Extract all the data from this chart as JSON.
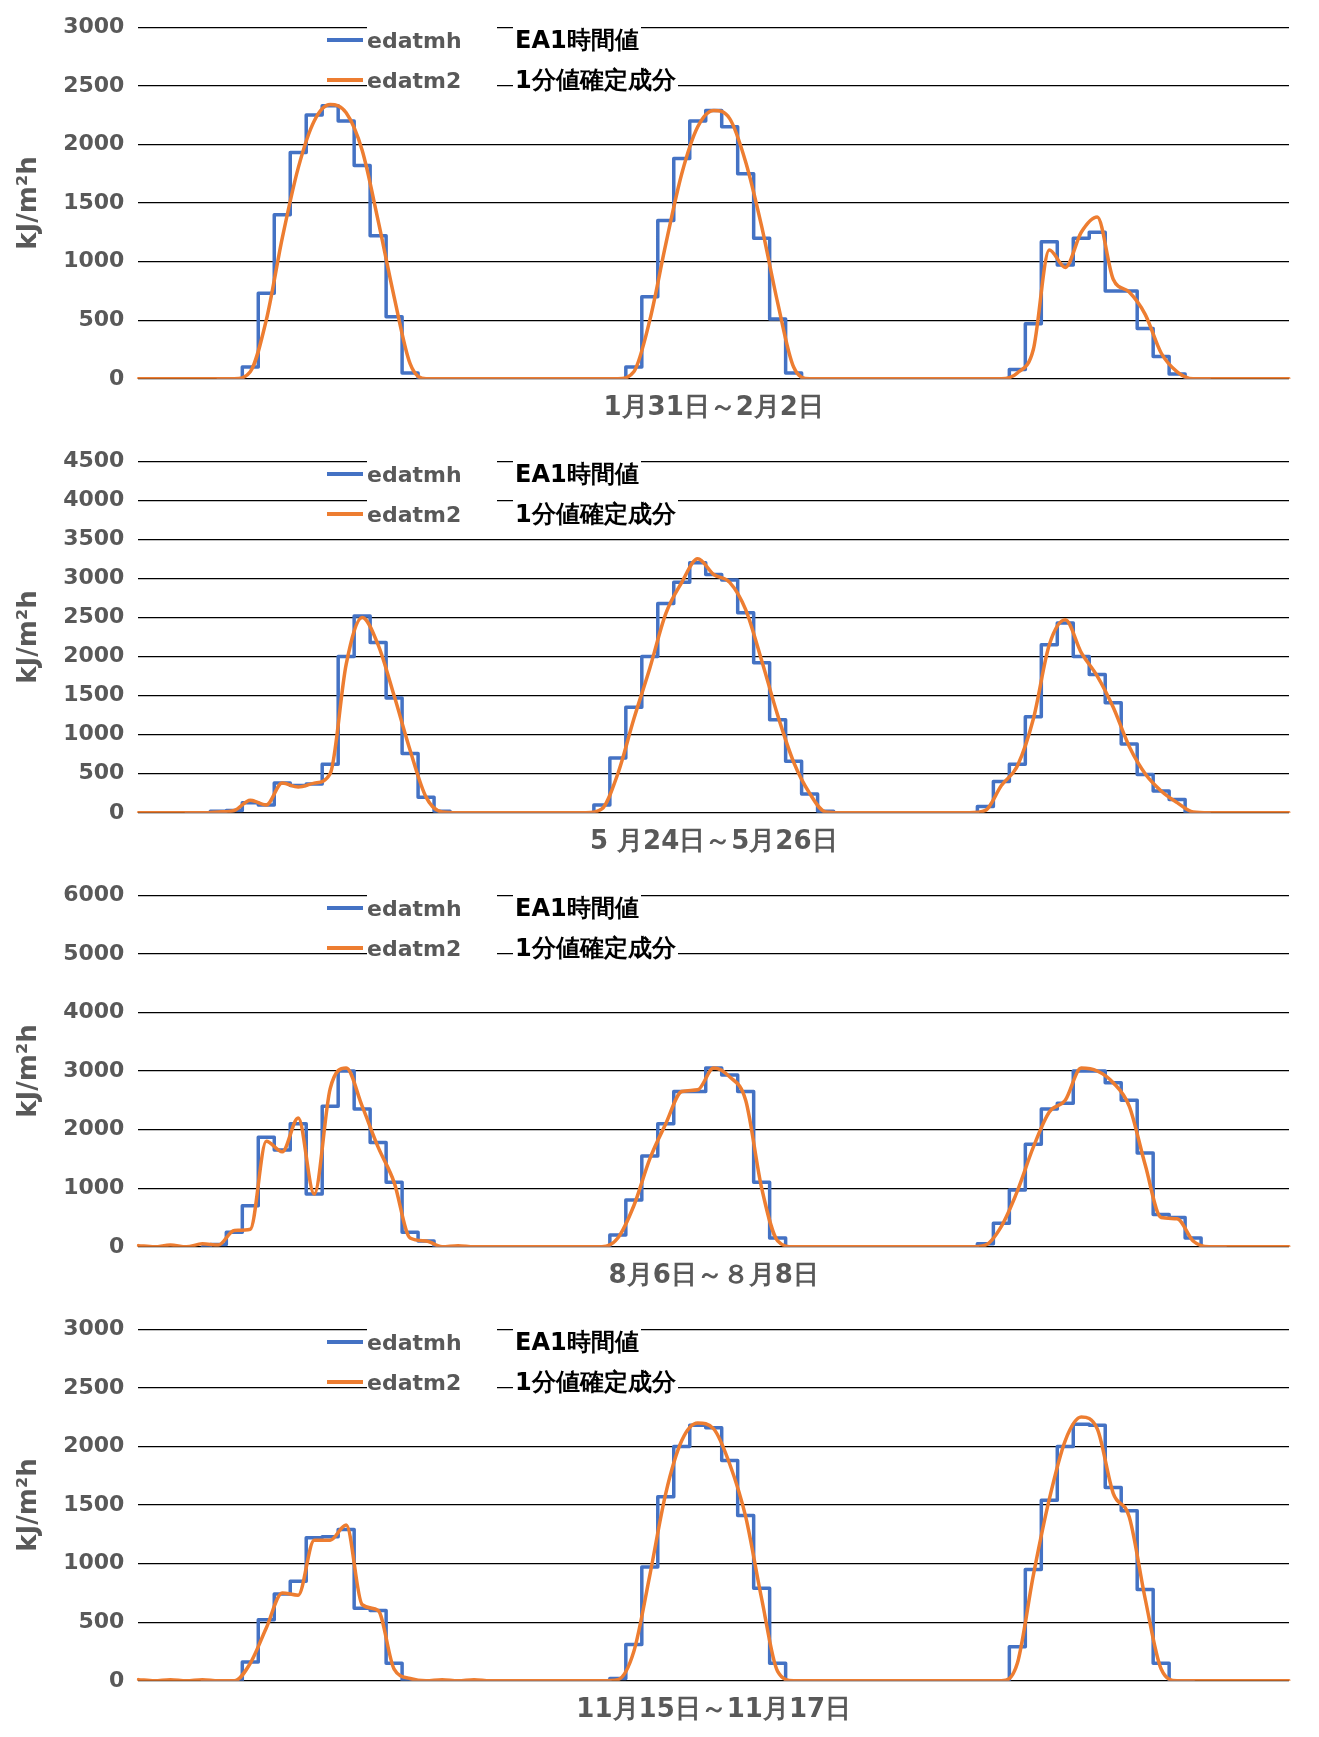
{
  "chart_data": [
    {
      "type": "line",
      "xlabel": "1月31日～2月2日",
      "ylabel": "kJ/m²h",
      "categories": [
        null,
        null,
        null,
        null,
        null,
        null,
        null,
        null,
        null,
        null,
        null,
        null,
        null,
        null,
        null,
        null,
        null,
        null,
        null,
        null,
        null,
        null,
        null,
        null,
        null,
        null,
        null,
        null,
        null,
        null,
        null,
        null,
        null,
        null,
        null,
        null,
        null,
        null,
        null,
        null,
        null,
        null,
        null,
        null,
        null,
        null,
        null,
        null,
        null,
        null,
        null,
        null,
        null,
        null,
        null,
        null,
        null,
        null,
        null,
        null,
        null,
        null,
        null,
        null,
        null,
        null,
        null,
        null,
        null,
        null,
        null,
        null,
        null
      ],
      "ylim": [
        0,
        3000
      ],
      "yticks": [
        0,
        500,
        1000,
        1500,
        2000,
        2500,
        3000
      ],
      "grid": "y",
      "legend": "top left",
      "tick_labels": "y",
      "marker": "none",
      "line_style": "solid",
      "annotations": [
        "EA1時間値",
        "1分値確定成分"
      ],
      "series": [
        {
          "name": "edatmh",
          "type": "step",
          "color": "#4472c4",
          "values": [
            null,
            null,
            null,
            null,
            null,
            0,
            0,
            100,
            730,
            1400,
            1930,
            2250,
            2330,
            2200,
            1820,
            1220,
            530,
            50,
            0,
            0,
            0,
            0,
            0,
            0,
            0,
            0,
            0,
            0,
            0,
            0,
            0,
            100,
            700,
            1350,
            1880,
            2200,
            2290,
            2150,
            1750,
            1200,
            510,
            50,
            0,
            0,
            0,
            0,
            0,
            0,
            0,
            0,
            0,
            0,
            0,
            0,
            0,
            80,
            470,
            1170,
            970,
            1200,
            1250,
            750,
            750,
            430,
            190,
            40,
            0,
            0,
            null,
            null,
            null,
            null,
            null
          ]
        },
        {
          "name": "edatm2",
          "type": "line",
          "color": "#ed7d31",
          "values": [
            0,
            0,
            0,
            0,
            0,
            0,
            0,
            60,
            500,
            1200,
            1800,
            2200,
            2340,
            2270,
            1950,
            1350,
            700,
            130,
            0,
            0,
            0,
            0,
            0,
            0,
            0,
            0,
            0,
            0,
            0,
            0,
            0,
            60,
            500,
            1150,
            1750,
            2150,
            2290,
            2220,
            1850,
            1300,
            650,
            100,
            0,
            0,
            0,
            0,
            0,
            0,
            0,
            0,
            0,
            0,
            0,
            0,
            0,
            50,
            250,
            1100,
            950,
            1250,
            1380,
            850,
            740,
            550,
            220,
            60,
            0,
            0,
            0,
            0,
            0,
            0,
            0
          ]
        }
      ]
    },
    {
      "type": "line",
      "xlabel": "5 月24日～5月26日",
      "ylabel": "kJ/m²h",
      "categories": [
        null,
        null,
        null,
        null,
        null,
        null,
        null,
        null,
        null,
        null,
        null,
        null,
        null,
        null,
        null,
        null,
        null,
        null,
        null,
        null,
        null,
        null,
        null,
        null,
        null,
        null,
        null,
        null,
        null,
        null,
        null,
        null,
        null,
        null,
        null,
        null,
        null,
        null,
        null,
        null,
        null,
        null,
        null,
        null,
        null,
        null,
        null,
        null,
        null,
        null,
        null,
        null,
        null,
        null,
        null,
        null,
        null,
        null,
        null,
        null,
        null,
        null,
        null,
        null,
        null,
        null,
        null,
        null,
        null,
        null,
        null,
        null,
        null
      ],
      "ylim": [
        0,
        4500
      ],
      "yticks": [
        0,
        500,
        1000,
        1500,
        2000,
        2500,
        3000,
        3500,
        4000,
        4500
      ],
      "grid": "y",
      "legend": "top left",
      "tick_labels": "y",
      "marker": "none",
      "line_style": "solid",
      "annotations": [
        "EA1時間値",
        "1分値確定成分"
      ],
      "series": [
        {
          "name": "edatmh",
          "type": "step",
          "color": "#4472c4",
          "values": [
            null,
            null,
            null,
            0,
            0,
            20,
            30,
            130,
            100,
            380,
            350,
            370,
            620,
            2000,
            2520,
            2180,
            1470,
            760,
            200,
            20,
            0,
            0,
            0,
            0,
            0,
            0,
            0,
            0,
            0,
            100,
            700,
            1350,
            2000,
            2680,
            2950,
            3200,
            3050,
            2980,
            2560,
            1920,
            1190,
            660,
            240,
            20,
            0,
            0,
            0,
            0,
            0,
            0,
            0,
            0,
            0,
            80,
            400,
            620,
            1230,
            2150,
            2430,
            2000,
            1770,
            1410,
            880,
            490,
            280,
            170,
            0,
            0,
            null,
            null,
            null,
            null,
            null
          ]
        },
        {
          "name": "edatm2",
          "type": "line",
          "color": "#ed7d31",
          "values": [
            0,
            0,
            0,
            0,
            0,
            10,
            30,
            160,
            100,
            380,
            330,
            380,
            500,
            1900,
            2500,
            2150,
            1500,
            800,
            200,
            10,
            0,
            0,
            0,
            0,
            0,
            0,
            0,
            0,
            0,
            50,
            500,
            1200,
            1850,
            2550,
            2950,
            3250,
            3050,
            2950,
            2600,
            1950,
            1250,
            650,
            250,
            10,
            0,
            0,
            0,
            0,
            0,
            0,
            0,
            0,
            0,
            30,
            350,
            600,
            1200,
            2150,
            2470,
            2050,
            1750,
            1350,
            850,
            500,
            280,
            130,
            10,
            0,
            0,
            0,
            0,
            0,
            0
          ]
        }
      ]
    },
    {
      "type": "line",
      "xlabel": "8月6日～８月8日",
      "ylabel": "kJ/m²h",
      "categories": [
        null,
        null,
        null,
        null,
        null,
        null,
        null,
        null,
        null,
        null,
        null,
        null,
        null,
        null,
        null,
        null,
        null,
        null,
        null,
        null,
        null,
        null,
        null,
        null,
        null,
        null,
        null,
        null,
        null,
        null,
        null,
        null,
        null,
        null,
        null,
        null,
        null,
        null,
        null,
        null,
        null,
        null,
        null,
        null,
        null,
        null,
        null,
        null,
        null,
        null,
        null,
        null,
        null,
        null,
        null,
        null,
        null,
        null,
        null,
        null,
        null,
        null,
        null,
        null,
        null,
        null,
        null,
        null,
        null,
        null,
        null,
        null,
        null
      ],
      "ylim": [
        0,
        6000
      ],
      "yticks": [
        0,
        1000,
        2000,
        3000,
        4000,
        5000,
        6000
      ],
      "grid": "y",
      "legend": "top left",
      "tick_labels": "y",
      "marker": "none",
      "line_style": "solid",
      "annotations": [
        "EA1時間値",
        "1分値確定成分"
      ],
      "series": [
        {
          "name": "edatmh",
          "type": "step",
          "color": "#4472c4",
          "values": [
            null,
            null,
            null,
            null,
            0,
            40,
            250,
            700,
            1870,
            1650,
            2100,
            900,
            2400,
            3000,
            2350,
            1780,
            1100,
            250,
            100,
            0,
            0,
            0,
            0,
            0,
            0,
            0,
            0,
            0,
            0,
            0,
            200,
            800,
            1550,
            2100,
            2650,
            2650,
            3050,
            2930,
            2650,
            1100,
            150,
            0,
            0,
            0,
            0,
            0,
            0,
            0,
            0,
            0,
            0,
            0,
            0,
            50,
            400,
            970,
            1750,
            2350,
            2450,
            3000,
            3000,
            2800,
            2500,
            1600,
            550,
            500,
            150,
            0,
            0,
            null,
            null,
            null,
            null
          ]
        },
        {
          "name": "edatm2",
          "type": "line",
          "color": "#ed7d31",
          "values": [
            20,
            0,
            30,
            0,
            50,
            30,
            280,
            300,
            1800,
            1620,
            2200,
            900,
            2700,
            3050,
            2400,
            1700,
            1100,
            150,
            100,
            0,
            20,
            0,
            0,
            0,
            0,
            0,
            0,
            0,
            0,
            0,
            150,
            700,
            1500,
            2100,
            2650,
            2680,
            3050,
            2900,
            2500,
            1000,
            100,
            0,
            0,
            0,
            0,
            0,
            0,
            0,
            0,
            0,
            0,
            0,
            0,
            30,
            350,
            950,
            1700,
            2300,
            2500,
            3050,
            3000,
            2800,
            2400,
            1400,
            500,
            480,
            100,
            0,
            0,
            0,
            0,
            0,
            0
          ]
        }
      ]
    },
    {
      "type": "line",
      "xlabel": "11月15日～11月17日",
      "ylabel": "kJ/m²h",
      "categories": [
        null,
        null,
        null,
        null,
        null,
        null,
        null,
        null,
        null,
        null,
        null,
        null,
        null,
        null,
        null,
        null,
        null,
        null,
        null,
        null,
        null,
        null,
        null,
        null,
        null,
        null,
        null,
        null,
        null,
        null,
        null,
        null,
        null,
        null,
        null,
        null,
        null,
        null,
        null,
        null,
        null,
        null,
        null,
        null,
        null,
        null,
        null,
        null,
        null,
        null,
        null,
        null,
        null,
        null,
        null,
        null,
        null,
        null,
        null,
        null,
        null,
        null,
        null,
        null,
        null,
        null,
        null,
        null,
        null,
        null,
        null,
        null,
        null
      ],
      "ylim": [
        0,
        3000
      ],
      "yticks": [
        0,
        500,
        1000,
        1500,
        2000,
        2500,
        3000
      ],
      "grid": "y",
      "legend": "top left",
      "tick_labels": "y",
      "marker": "none",
      "line_style": "solid",
      "annotations": [
        "EA1時間値",
        "1分値確定成分"
      ],
      "series": [
        {
          "name": "edatmh",
          "type": "step",
          "color": "#4472c4",
          "values": [
            null,
            null,
            null,
            null,
            0,
            0,
            0,
            160,
            520,
            740,
            850,
            1220,
            1230,
            1290,
            620,
            600,
            150,
            0,
            0,
            0,
            0,
            0,
            0,
            0,
            0,
            0,
            0,
            0,
            0,
            0,
            20,
            310,
            970,
            1570,
            2000,
            2180,
            2160,
            1880,
            1410,
            790,
            150,
            0,
            0,
            0,
            0,
            0,
            0,
            0,
            0,
            0,
            0,
            0,
            0,
            0,
            0,
            290,
            950,
            1540,
            2000,
            2190,
            2180,
            1650,
            1450,
            780,
            150,
            0,
            0,
            null,
            null,
            null,
            null,
            null,
            null
          ]
        },
        {
          "name": "edatm2",
          "type": "line",
          "color": "#ed7d31",
          "values": [
            10,
            0,
            10,
            0,
            10,
            0,
            0,
            150,
            450,
            750,
            730,
            1200,
            1200,
            1330,
            650,
            600,
            100,
            20,
            0,
            10,
            0,
            10,
            0,
            0,
            0,
            0,
            0,
            0,
            0,
            0,
            10,
            250,
            900,
            1600,
            2050,
            2200,
            2150,
            1850,
            1400,
            700,
            80,
            0,
            0,
            0,
            0,
            0,
            0,
            0,
            0,
            0,
            0,
            0,
            0,
            0,
            0,
            150,
            900,
            1550,
            2050,
            2250,
            2150,
            1600,
            1400,
            700,
            100,
            0,
            0,
            0,
            0,
            0,
            0,
            0,
            0
          ]
        }
      ]
    }
  ]
}
